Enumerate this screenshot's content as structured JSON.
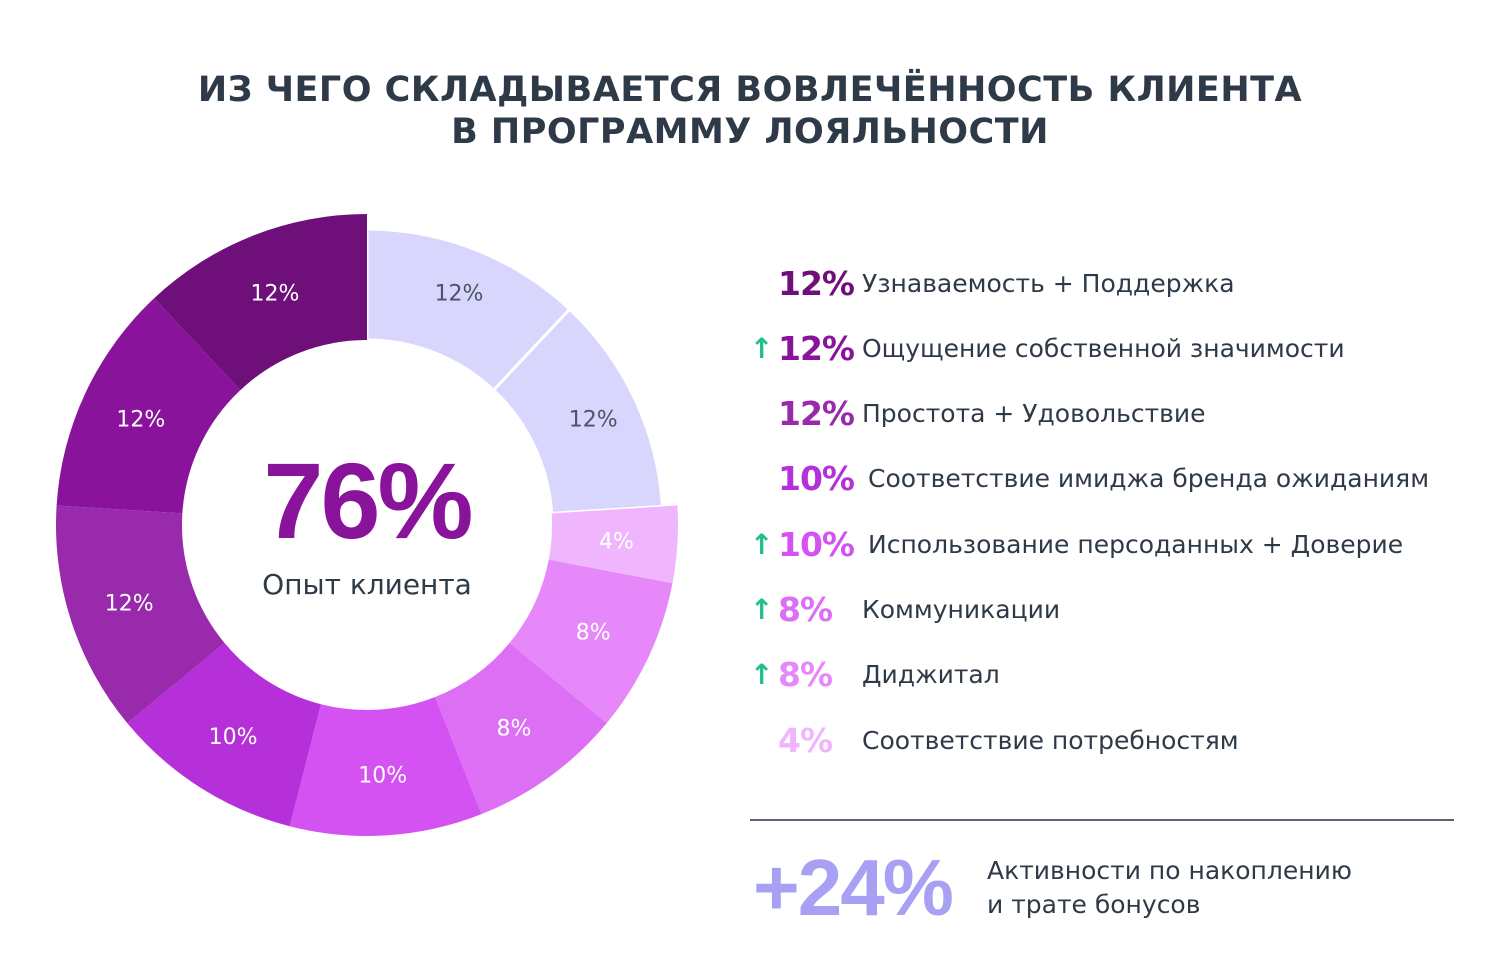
{
  "title": {
    "line1": "ИЗ ЧЕГО СКЛАДЫВАЕТСЯ ВОВЛЕЧЁННОСТЬ КЛИЕНТА",
    "line2": "В ПРОГРАММУ ЛОЯЛЬНОСТИ"
  },
  "chart_data": {
    "type": "pie",
    "title": "ИЗ ЧЕГО СКЛАДЫВАЕТСЯ ВОВЛЕЧЁННОСТЬ КЛИЕНТА В ПРОГРАММУ ЛОЯЛЬНОСТИ",
    "center_value": "76%",
    "center_label": "Опыт клиента",
    "slices": [
      {
        "label": "12%",
        "value": 12,
        "color": "#d8d6fd",
        "text_color": "#4a5563",
        "light": true
      },
      {
        "label": "12%",
        "value": 12,
        "color": "#d8d6fd",
        "text_color": "#4a5563",
        "light": true
      },
      {
        "label": "4%",
        "value": 4,
        "color": "#efb6fd",
        "text_color": "#ffffff"
      },
      {
        "label": "8%",
        "value": 8,
        "color": "#e688f9",
        "text_color": "#ffffff"
      },
      {
        "label": "8%",
        "value": 8,
        "color": "#dd6ff5",
        "text_color": "#ffffff"
      },
      {
        "label": "10%",
        "value": 10,
        "color": "#d452f2",
        "text_color": "#ffffff"
      },
      {
        "label": "10%",
        "value": 10,
        "color": "#b530d8",
        "text_color": "#ffffff"
      },
      {
        "label": "12%",
        "value": 12,
        "color": "#982aab",
        "text_color": "#ffffff"
      },
      {
        "label": "12%",
        "value": 12,
        "color": "#89139b",
        "text_color": "#ffffff"
      },
      {
        "label": "12%",
        "value": 12,
        "color": "#6e0f7a",
        "text_color": "#ffffff"
      }
    ],
    "legend": [
      {
        "pct": "12%",
        "label": "Узнаваемость + Поддержка",
        "color": "#6e0f7a",
        "arrow": false
      },
      {
        "pct": "12%",
        "label": "Ощущение собственной значимости",
        "color": "#89139b",
        "arrow": true
      },
      {
        "pct": "12%",
        "label": "Простота + Удовольствие",
        "color": "#982aab",
        "arrow": false
      },
      {
        "pct": "10%",
        "label": "Соответствие имиджа бренда ожиданиям",
        "color": "#b530d8",
        "arrow": false
      },
      {
        "pct": "10%",
        "label": "Использование персоданных + Доверие",
        "color": "#d452f2",
        "arrow": true
      },
      {
        "pct": "8%",
        "label": "Коммуникации",
        "color": "#dd6ff5",
        "arrow": true
      },
      {
        "pct": "8%",
        "label": "Диджитал",
        "color": "#e688f9",
        "arrow": true
      },
      {
        "pct": "4%",
        "label": "Соответствие потребностям",
        "color": "#efb6fd",
        "arrow": false
      }
    ]
  },
  "arrow_symbol": "↑",
  "arrow_color": "#1fbf8f",
  "summary": {
    "value": "+24%",
    "line1": "Активности по накоплению",
    "line2": "и трате бонусов"
  }
}
